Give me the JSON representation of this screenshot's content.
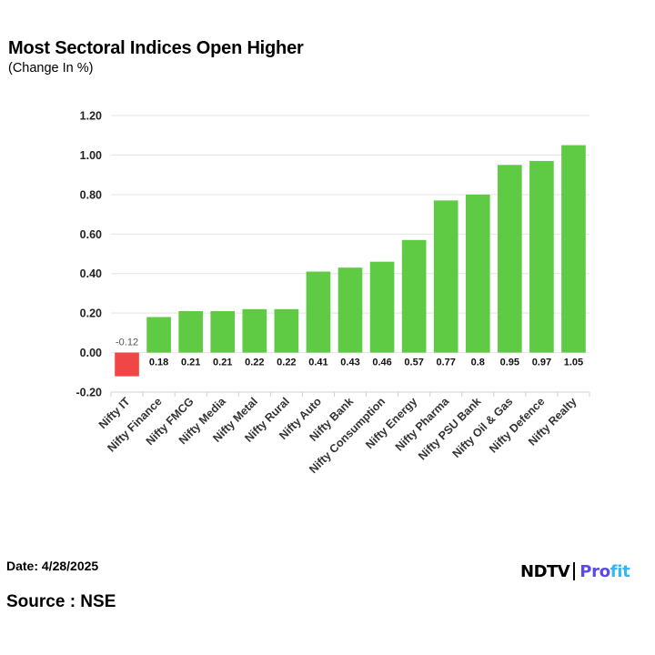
{
  "header": {
    "title": "Most Sectoral Indices Open Higher",
    "subtitle": "(Change In %)"
  },
  "footer": {
    "date": "Date: 4/28/2025",
    "source": "Source : NSE"
  },
  "logo": {
    "brand": "NDTV",
    "product_main": "Pro",
    "product_accent": "fit"
  },
  "colors": {
    "positive": "#5fcb45",
    "negative": "#f04646",
    "grid": "#e3e3e3",
    "axis": "#d0d0d0"
  },
  "chart_data": {
    "type": "bar",
    "title": "Most Sectoral Indices Open Higher",
    "subtitle": "(Change In %)",
    "xlabel": "",
    "ylabel": "",
    "ylim": [
      -0.2,
      1.2
    ],
    "yticks": [
      -0.2,
      0.0,
      0.2,
      0.4,
      0.6,
      0.8,
      1.0,
      1.2
    ],
    "ytick_labels": [
      "-0.20",
      "0.00",
      "0.20",
      "0.40",
      "0.60",
      "0.80",
      "1.00",
      "1.20"
    ],
    "grid": true,
    "categories": [
      "Nifty IT",
      "Nifty Finance",
      "Nifty FMCG",
      "Nifty Media",
      "Nifty Metal",
      "Nifty Rural",
      "Nifty Auto",
      "Nifty Bank",
      "Nifty Consumption",
      "Nifty Energy",
      "Nifty Pharma",
      "Nifty PSU Bank",
      "Nifty Oil & Gas",
      "Nifty Defence",
      "Nifty Realty"
    ],
    "values": [
      -0.12,
      0.18,
      0.21,
      0.21,
      0.22,
      0.22,
      0.41,
      0.43,
      0.46,
      0.57,
      0.77,
      0.8,
      0.95,
      0.97,
      1.05
    ],
    "value_labels": [
      "-0.12",
      "0.18",
      "0.21",
      "0.21",
      "0.22",
      "0.22",
      "0.41",
      "0.43",
      "0.46",
      "0.57",
      "0.77",
      "0.8",
      "0.95",
      "0.97",
      "1.05"
    ]
  }
}
